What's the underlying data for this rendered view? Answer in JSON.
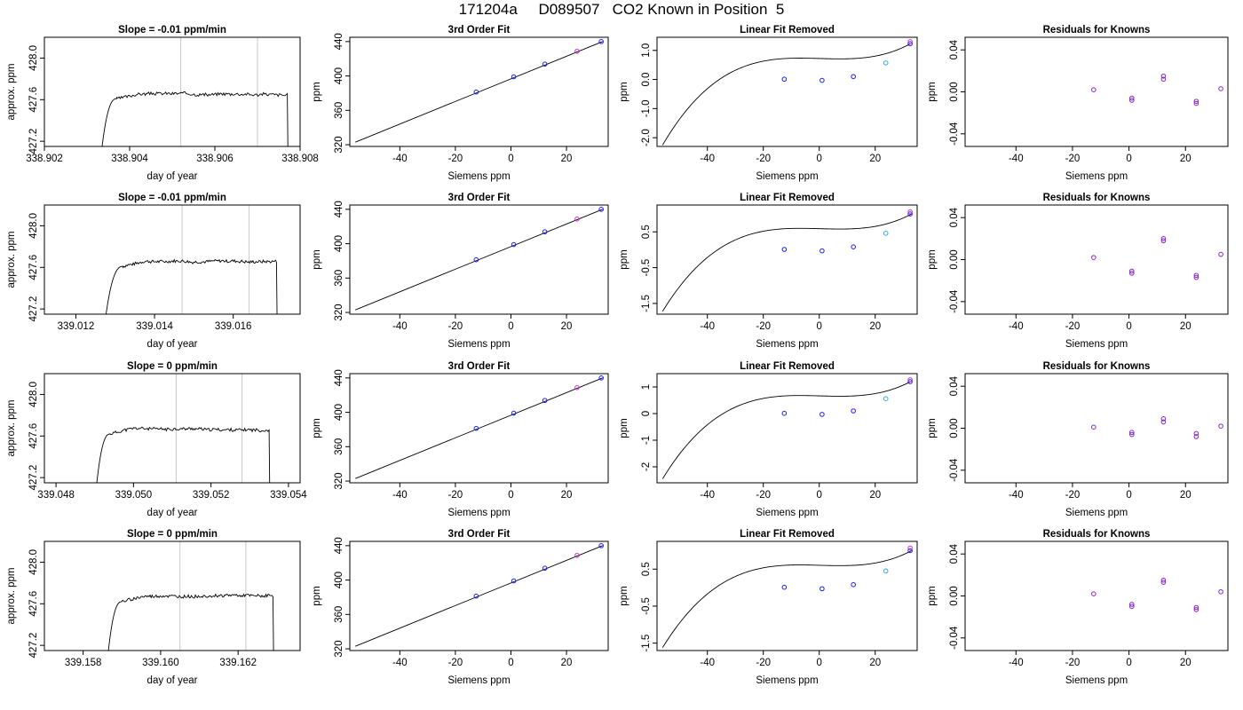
{
  "page": {
    "title": "171204a     D089507   CO2 Known in Position  5"
  },
  "colors": {
    "axis": "#000000",
    "trace": "#000000",
    "marker_line": "#c8c8c8",
    "point_blue": "#1a1aff",
    "point_magenta": "#cc33cc",
    "point_cyan": "#33aadd",
    "point_violet": "#8822cc"
  },
  "chart_data": [
    {
      "row": 0,
      "col": 0,
      "type": "line",
      "title": "Slope =  -0.01  ppm/min",
      "xlabel": "day of year",
      "ylabel": "approx. ppm",
      "xlim": [
        338.902,
        338.908
      ],
      "ylim": [
        427.15,
        428.2
      ],
      "xticks": [
        "338.902",
        "338.904",
        "338.906",
        "338.908"
      ],
      "xtick_values": [
        338.902,
        338.904,
        338.906,
        338.908
      ],
      "yticks": [
        "427.2",
        "427.6",
        "428.0"
      ],
      "ytick_values": [
        427.2,
        427.6,
        428.0
      ],
      "vlines": [
        338.9052,
        338.907
      ],
      "trace": {
        "start": 338.9033,
        "rise_end": 338.9037,
        "drop": 338.9077,
        "plateau": 427.66,
        "amp": 0.015,
        "seed": 3
      }
    },
    {
      "row": 0,
      "col": 1,
      "type": "scatter",
      "title": "3rd Order Fit",
      "xlabel": "Siemens ppm",
      "ylabel": "ppm",
      "xlim": [
        -58,
        35
      ],
      "ylim": [
        318,
        445
      ],
      "xticks": [
        "-40",
        "-20",
        "0",
        "20"
      ],
      "xtick_values": [
        -40,
        -20,
        0,
        20
      ],
      "yticks": [
        "320",
        "360",
        "400",
        "440"
      ],
      "ytick_values": [
        320,
        360,
        400,
        440
      ],
      "curve": {
        "kind": "linear",
        "x0": -56,
        "x1": 33,
        "y0": 323,
        "y1": 440
      },
      "points": [
        {
          "x": -12.5,
          "y": 381.3,
          "c": "point_blue"
        },
        {
          "x": 1,
          "y": 399.0,
          "c": "point_blue"
        },
        {
          "x": 12.2,
          "y": 413.8,
          "c": "point_blue"
        },
        {
          "x": 23.8,
          "y": 428.7,
          "c": "point_magenta"
        },
        {
          "x": 32.5,
          "y": 440.0,
          "c": "point_blue"
        }
      ]
    },
    {
      "row": 0,
      "col": 2,
      "type": "scatter",
      "title": "Linear Fit Removed",
      "xlabel": "Siemens ppm",
      "ylabel": "ppm",
      "xlim": [
        -58,
        35
      ],
      "ylim": [
        -2.3,
        1.45
      ],
      "xticks": [
        "-40",
        "-20",
        "0",
        "20"
      ],
      "xtick_values": [
        -40,
        -20,
        0,
        20
      ],
      "yticks": [
        "-2.0",
        "-1.0",
        "0.0",
        "1.0"
      ],
      "ytick_values": [
        -2,
        -1,
        0,
        1
      ],
      "curve": {
        "kind": "cubic",
        "x0": -56,
        "x1": 33,
        "yl": -2.25,
        "yr": 1.25
      },
      "points": [
        {
          "x": -12.5,
          "y": 0.01,
          "c": "point_blue"
        },
        {
          "x": 1,
          "y": -0.03,
          "c": "point_blue"
        },
        {
          "x": 12.2,
          "y": 0.1,
          "c": "point_blue"
        },
        {
          "x": 23.8,
          "y": 0.57,
          "c": "point_cyan"
        },
        {
          "x": 32.5,
          "y": 1.23,
          "c": "point_blue"
        },
        {
          "x": 32.5,
          "y": 1.3,
          "c": "point_magenta"
        }
      ]
    },
    {
      "row": 0,
      "col": 3,
      "type": "scatter",
      "title": "Residuals for Knowns",
      "xlabel": "Siemens ppm",
      "ylabel": "ppm",
      "xlim": [
        -58,
        35
      ],
      "ylim": [
        -0.052,
        0.052
      ],
      "xticks": [
        "-40",
        "-20",
        "0",
        "20"
      ],
      "xtick_values": [
        -40,
        -20,
        0,
        20
      ],
      "yticks": [
        "-0.04",
        "0.00",
        "0.04"
      ],
      "ytick_values": [
        -0.04,
        0,
        0.04
      ],
      "points": [
        {
          "x": -12.5,
          "y": 0.002,
          "c": "point_violet"
        },
        {
          "x": 1,
          "y": -0.006,
          "c": "point_violet"
        },
        {
          "x": 1,
          "y": -0.008,
          "c": "point_violet"
        },
        {
          "x": 12.2,
          "y": 0.015,
          "c": "point_violet"
        },
        {
          "x": 12.2,
          "y": 0.012,
          "c": "point_violet"
        },
        {
          "x": 23.8,
          "y": -0.009,
          "c": "point_violet"
        },
        {
          "x": 23.8,
          "y": -0.011,
          "c": "point_violet"
        },
        {
          "x": 32.5,
          "y": 0.003,
          "c": "point_violet"
        }
      ]
    },
    {
      "row": 1,
      "col": 0,
      "type": "line",
      "title": "Slope =  -0.01  ppm/min",
      "xlabel": "day of year",
      "ylabel": "approx. ppm",
      "xlim": [
        339.0112,
        339.0177
      ],
      "ylim": [
        427.15,
        428.2
      ],
      "xticks": [
        "339.012",
        "339.014",
        "339.016"
      ],
      "xtick_values": [
        339.012,
        339.014,
        339.016
      ],
      "yticks": [
        "427.2",
        "427.6",
        "428.0"
      ],
      "ytick_values": [
        427.2,
        427.6,
        428.0
      ],
      "vlines": [
        339.0147,
        339.0164
      ],
      "trace": {
        "start": 339.0127,
        "rise_end": 339.0132,
        "drop": 339.0171,
        "plateau": 427.66,
        "amp": 0.015,
        "seed": 7
      }
    },
    {
      "row": 1,
      "col": 1,
      "type": "scatter",
      "title": "3rd Order Fit",
      "xlabel": "Siemens ppm",
      "ylabel": "ppm",
      "xlim": [
        -58,
        35
      ],
      "ylim": [
        318,
        445
      ],
      "xticks": [
        "-40",
        "-20",
        "0",
        "20"
      ],
      "xtick_values": [
        -40,
        -20,
        0,
        20
      ],
      "yticks": [
        "320",
        "360",
        "400",
        "440"
      ],
      "ytick_values": [
        320,
        360,
        400,
        440
      ],
      "curve": {
        "kind": "linear",
        "x0": -56,
        "x1": 33,
        "y0": 323,
        "y1": 440
      },
      "points": [
        {
          "x": -12.5,
          "y": 381.3,
          "c": "point_blue"
        },
        {
          "x": 1,
          "y": 399.0,
          "c": "point_blue"
        },
        {
          "x": 12.2,
          "y": 413.8,
          "c": "point_blue"
        },
        {
          "x": 23.8,
          "y": 428.7,
          "c": "point_magenta"
        },
        {
          "x": 32.5,
          "y": 440.0,
          "c": "point_blue"
        }
      ]
    },
    {
      "row": 1,
      "col": 2,
      "type": "scatter",
      "title": "Linear Fit Removed",
      "xlabel": "Siemens ppm",
      "ylabel": "ppm",
      "xlim": [
        -58,
        35
      ],
      "ylim": [
        -1.8,
        1.25
      ],
      "xticks": [
        "-40",
        "-20",
        "0",
        "20"
      ],
      "xtick_values": [
        -40,
        -20,
        0,
        20
      ],
      "yticks": [
        "-1.5",
        "-0.5",
        "0.5"
      ],
      "ytick_values": [
        -1.5,
        -0.5,
        0.5
      ],
      "curve": {
        "kind": "cubic",
        "x0": -56,
        "x1": 33,
        "yl": -1.72,
        "yr": 1.0
      },
      "points": [
        {
          "x": -12.5,
          "y": 0.01,
          "c": "point_blue"
        },
        {
          "x": 1,
          "y": -0.03,
          "c": "point_blue"
        },
        {
          "x": 12.2,
          "y": 0.08,
          "c": "point_blue"
        },
        {
          "x": 23.8,
          "y": 0.46,
          "c": "point_cyan"
        },
        {
          "x": 32.5,
          "y": 1.0,
          "c": "point_blue"
        },
        {
          "x": 32.5,
          "y": 1.06,
          "c": "point_magenta"
        }
      ]
    },
    {
      "row": 1,
      "col": 3,
      "type": "scatter",
      "title": "Residuals for Knowns",
      "xlabel": "Siemens ppm",
      "ylabel": "ppm",
      "xlim": [
        -58,
        35
      ],
      "ylim": [
        -0.052,
        0.052
      ],
      "xticks": [
        "-40",
        "-20",
        "0",
        "20"
      ],
      "xtick_values": [
        -40,
        -20,
        0,
        20
      ],
      "yticks": [
        "-0.04",
        "0.00",
        "0.04"
      ],
      "ytick_values": [
        -0.04,
        0,
        0.04
      ],
      "points": [
        {
          "x": -12.5,
          "y": 0.002,
          "c": "point_violet"
        },
        {
          "x": 1,
          "y": -0.011,
          "c": "point_violet"
        },
        {
          "x": 1,
          "y": -0.013,
          "c": "point_violet"
        },
        {
          "x": 12.2,
          "y": 0.02,
          "c": "point_violet"
        },
        {
          "x": 12.2,
          "y": 0.018,
          "c": "point_violet"
        },
        {
          "x": 23.8,
          "y": -0.015,
          "c": "point_violet"
        },
        {
          "x": 23.8,
          "y": -0.017,
          "c": "point_violet"
        },
        {
          "x": 32.5,
          "y": 0.005,
          "c": "point_violet"
        }
      ]
    },
    {
      "row": 2,
      "col": 0,
      "type": "line",
      "title": "Slope =  0  ppm/min",
      "xlabel": "day of year",
      "ylabel": "approx. ppm",
      "xlim": [
        339.0477,
        339.0543
      ],
      "ylim": [
        427.15,
        428.2
      ],
      "xticks": [
        "339.048",
        "339.050",
        "339.052",
        "339.054"
      ],
      "xtick_values": [
        339.048,
        339.05,
        339.052,
        339.054
      ],
      "yticks": [
        "427.2",
        "427.6",
        "428.0"
      ],
      "ytick_values": [
        427.2,
        427.6,
        428.0
      ],
      "vlines": [
        339.0511,
        339.0528
      ],
      "trace": {
        "start": 339.049,
        "rise_end": 339.0494,
        "drop": 339.0535,
        "plateau": 427.67,
        "amp": 0.015,
        "seed": 11
      }
    },
    {
      "row": 2,
      "col": 1,
      "type": "scatter",
      "title": "3rd Order Fit",
      "xlabel": "Siemens ppm",
      "ylabel": "ppm",
      "xlim": [
        -58,
        35
      ],
      "ylim": [
        318,
        445
      ],
      "xticks": [
        "-40",
        "-20",
        "0",
        "20"
      ],
      "xtick_values": [
        -40,
        -20,
        0,
        20
      ],
      "yticks": [
        "320",
        "360",
        "400",
        "440"
      ],
      "ytick_values": [
        320,
        360,
        400,
        440
      ],
      "curve": {
        "kind": "linear",
        "x0": -56,
        "x1": 33,
        "y0": 323,
        "y1": 440
      },
      "points": [
        {
          "x": -12.5,
          "y": 381.3,
          "c": "point_blue"
        },
        {
          "x": 1,
          "y": 399.0,
          "c": "point_blue"
        },
        {
          "x": 12.2,
          "y": 413.8,
          "c": "point_blue"
        },
        {
          "x": 23.8,
          "y": 428.7,
          "c": "point_magenta"
        },
        {
          "x": 32.5,
          "y": 440.0,
          "c": "point_blue"
        }
      ]
    },
    {
      "row": 2,
      "col": 2,
      "type": "scatter",
      "title": "Linear Fit Removed",
      "xlabel": "Siemens ppm",
      "ylabel": "ppm",
      "xlim": [
        -58,
        35
      ],
      "ylim": [
        -2.6,
        1.5
      ],
      "xticks": [
        "-40",
        "-20",
        "0",
        "20"
      ],
      "xtick_values": [
        -40,
        -20,
        0,
        20
      ],
      "yticks": [
        "-2",
        "-1",
        "0",
        "1"
      ],
      "ytick_values": [
        -2,
        -1,
        0,
        1
      ],
      "curve": {
        "kind": "cubic",
        "x0": -56,
        "x1": 33,
        "yl": -2.45,
        "yr": 1.22
      },
      "points": [
        {
          "x": -12.5,
          "y": 0.01,
          "c": "point_blue"
        },
        {
          "x": 1,
          "y": -0.03,
          "c": "point_blue"
        },
        {
          "x": 12.2,
          "y": 0.1,
          "c": "point_blue"
        },
        {
          "x": 23.8,
          "y": 0.56,
          "c": "point_cyan"
        },
        {
          "x": 32.5,
          "y": 1.2,
          "c": "point_blue"
        },
        {
          "x": 32.5,
          "y": 1.27,
          "c": "point_magenta"
        }
      ]
    },
    {
      "row": 2,
      "col": 3,
      "type": "scatter",
      "title": "Residuals for Knowns",
      "xlabel": "Siemens ppm",
      "ylabel": "ppm",
      "xlim": [
        -58,
        35
      ],
      "ylim": [
        -0.052,
        0.052
      ],
      "xticks": [
        "-40",
        "-20",
        "0",
        "20"
      ],
      "xtick_values": [
        -40,
        -20,
        0,
        20
      ],
      "yticks": [
        "-0.04",
        "0.00",
        "0.04"
      ],
      "ytick_values": [
        -0.04,
        0,
        0.04
      ],
      "points": [
        {
          "x": -12.5,
          "y": 0.001,
          "c": "point_violet"
        },
        {
          "x": 1,
          "y": -0.004,
          "c": "point_violet"
        },
        {
          "x": 1,
          "y": -0.006,
          "c": "point_violet"
        },
        {
          "x": 12.2,
          "y": 0.009,
          "c": "point_violet"
        },
        {
          "x": 12.2,
          "y": 0.006,
          "c": "point_violet"
        },
        {
          "x": 23.8,
          "y": -0.005,
          "c": "point_violet"
        },
        {
          "x": 23.8,
          "y": -0.008,
          "c": "point_violet"
        },
        {
          "x": 32.5,
          "y": 0.002,
          "c": "point_violet"
        }
      ]
    },
    {
      "row": 3,
      "col": 0,
      "type": "line",
      "title": "Slope =  0  ppm/min",
      "xlabel": "day of year",
      "ylabel": "approx. ppm",
      "xlim": [
        339.157,
        339.1636
      ],
      "ylim": [
        427.15,
        428.2
      ],
      "xticks": [
        "339.158",
        "339.160",
        "339.162"
      ],
      "xtick_values": [
        339.158,
        339.16,
        339.162
      ],
      "yticks": [
        "427.2",
        "427.6",
        "428.0"
      ],
      "ytick_values": [
        427.2,
        427.6,
        428.0
      ],
      "vlines": [
        339.1605,
        339.1622
      ],
      "trace": {
        "start": 339.1586,
        "rise_end": 339.159,
        "drop": 339.1629,
        "plateau": 427.67,
        "amp": 0.015,
        "seed": 19
      }
    },
    {
      "row": 3,
      "col": 1,
      "type": "scatter",
      "title": "3rd Order Fit",
      "xlabel": "Siemens ppm",
      "ylabel": "ppm",
      "xlim": [
        -58,
        35
      ],
      "ylim": [
        318,
        445
      ],
      "xticks": [
        "-40",
        "-20",
        "0",
        "20"
      ],
      "xtick_values": [
        -40,
        -20,
        0,
        20
      ],
      "yticks": [
        "320",
        "360",
        "400",
        "440"
      ],
      "ytick_values": [
        320,
        360,
        400,
        440
      ],
      "curve": {
        "kind": "linear",
        "x0": -56,
        "x1": 33,
        "y0": 323,
        "y1": 440
      },
      "points": [
        {
          "x": -12.5,
          "y": 381.3,
          "c": "point_blue"
        },
        {
          "x": 1,
          "y": 399.0,
          "c": "point_blue"
        },
        {
          "x": 12.2,
          "y": 413.8,
          "c": "point_blue"
        },
        {
          "x": 23.8,
          "y": 428.7,
          "c": "point_magenta"
        },
        {
          "x": 32.5,
          "y": 440.0,
          "c": "point_blue"
        }
      ]
    },
    {
      "row": 3,
      "col": 2,
      "type": "scatter",
      "title": "Linear Fit Removed",
      "xlabel": "Siemens ppm",
      "ylabel": "ppm",
      "xlim": [
        -58,
        35
      ],
      "ylim": [
        -1.7,
        1.25
      ],
      "xticks": [
        "-40",
        "-20",
        "0",
        "20"
      ],
      "xtick_values": [
        -40,
        -20,
        0,
        20
      ],
      "yticks": [
        "-1.5",
        "-0.5",
        "0.5"
      ],
      "ytick_values": [
        -1.5,
        -0.5,
        0.5
      ],
      "curve": {
        "kind": "cubic",
        "x0": -56,
        "x1": 33,
        "yl": -1.62,
        "yr": 1.0
      },
      "points": [
        {
          "x": -12.5,
          "y": 0.01,
          "c": "point_blue"
        },
        {
          "x": 1,
          "y": -0.03,
          "c": "point_blue"
        },
        {
          "x": 12.2,
          "y": 0.08,
          "c": "point_blue"
        },
        {
          "x": 23.8,
          "y": 0.45,
          "c": "point_cyan"
        },
        {
          "x": 32.5,
          "y": 1.0,
          "c": "point_blue"
        },
        {
          "x": 32.5,
          "y": 1.07,
          "c": "point_magenta"
        }
      ]
    },
    {
      "row": 3,
      "col": 3,
      "type": "scatter",
      "title": "Residuals for Knowns",
      "xlabel": "Siemens ppm",
      "ylabel": "ppm",
      "xlim": [
        -58,
        35
      ],
      "ylim": [
        -0.052,
        0.052
      ],
      "xticks": [
        "-40",
        "-20",
        "0",
        "20"
      ],
      "xtick_values": [
        -40,
        -20,
        0,
        20
      ],
      "yticks": [
        "-0.04",
        "0.00",
        "0.04"
      ],
      "ytick_values": [
        -0.04,
        0,
        0.04
      ],
      "points": [
        {
          "x": -12.5,
          "y": 0.002,
          "c": "point_violet"
        },
        {
          "x": 1,
          "y": -0.008,
          "c": "point_violet"
        },
        {
          "x": 1,
          "y": -0.01,
          "c": "point_violet"
        },
        {
          "x": 12.2,
          "y": 0.015,
          "c": "point_violet"
        },
        {
          "x": 12.2,
          "y": 0.013,
          "c": "point_violet"
        },
        {
          "x": 23.8,
          "y": -0.011,
          "c": "point_violet"
        },
        {
          "x": 23.8,
          "y": -0.013,
          "c": "point_violet"
        },
        {
          "x": 32.5,
          "y": 0.004,
          "c": "point_violet"
        }
      ]
    }
  ]
}
